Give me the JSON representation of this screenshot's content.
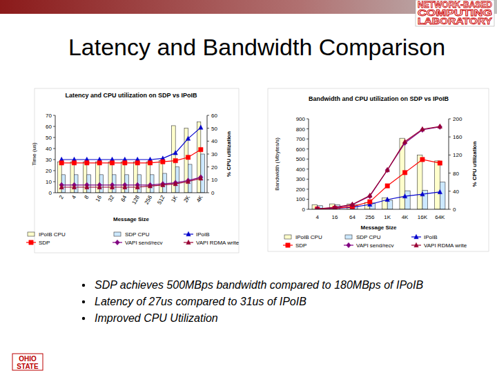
{
  "slide": {
    "title": "Latency and Bandwidth Comparison",
    "bullets": [
      "SDP achieves 500MBps bandwidth compared to 180MBps of IPoIB",
      "Latency of 27us compared to 31us of IPoIB",
      "Improved CPU Utilization"
    ],
    "logo": [
      "NETWORK-BASED",
      "COMPUTING",
      "LABORATORY"
    ],
    "footer_logo": [
      "OHIO",
      "STATE"
    ]
  },
  "chart_data": [
    {
      "type": "bar",
      "title": "Latency and CPU utilization on SDP vs IPoIB",
      "x_label": "Message Size",
      "y_label": "Time (us)",
      "y2_label": "% CPU utilization",
      "categories": [
        "2",
        "4",
        "8",
        "16",
        "32",
        "64",
        "128",
        "256",
        "512",
        "1K",
        "2K",
        "4K"
      ],
      "ylim": [
        0,
        70
      ],
      "yticks": [
        0,
        10,
        20,
        30,
        40,
        50,
        60,
        70
      ],
      "y2lim": [
        0,
        60
      ],
      "y2ticks": [
        0,
        10,
        20,
        30,
        40,
        50,
        60
      ],
      "legend": "bottom",
      "grid": false,
      "series": [
        {
          "name": "IPoIB CPU",
          "type": "bar",
          "axis": "y2",
          "color": "#ffffcc",
          "values": [
            24,
            24,
            24,
            24,
            24,
            24,
            24,
            24,
            25,
            52,
            50,
            55
          ]
        },
        {
          "name": "SDP CPU",
          "type": "bar",
          "axis": "y2",
          "color": "#cce8ff",
          "values": [
            14,
            14,
            14,
            14,
            14,
            14,
            14,
            14,
            15,
            20,
            22,
            30
          ]
        },
        {
          "name": "IPoIB",
          "type": "line",
          "color": "#0000cc",
          "marker": "triangle",
          "values": [
            30,
            30,
            30,
            30,
            30,
            30,
            30,
            30,
            31,
            36,
            49,
            59
          ]
        },
        {
          "name": "SDP",
          "type": "line",
          "color": "#ff0000",
          "marker": "square",
          "values": [
            27,
            27,
            27,
            27,
            27,
            27,
            27,
            27,
            28,
            29,
            32,
            39
          ]
        },
        {
          "name": "VAPI send/recv",
          "type": "line",
          "color": "#800080",
          "marker": "diamond",
          "values": [
            7,
            7,
            7,
            7,
            7,
            7,
            7,
            7,
            8,
            9,
            11,
            14
          ]
        },
        {
          "name": "VAPI RDMA write",
          "type": "line",
          "color": "#990033",
          "marker": "triangle",
          "values": [
            5,
            5,
            5,
            5,
            5,
            5,
            5,
            6,
            7,
            8,
            10,
            13
          ]
        }
      ]
    },
    {
      "type": "bar",
      "title": "Bandwidth and CPU utilization on SDP vs IPoIB",
      "x_label": "Message Size",
      "y_label": "Bandwidth (Mbytes/s)",
      "y2_label": "% CPU utilization",
      "categories": [
        "4",
        "16",
        "64",
        "256",
        "1K",
        "4K",
        "16K",
        "64K"
      ],
      "ylim": [
        0,
        900
      ],
      "yticks": [
        0,
        100,
        200,
        300,
        400,
        500,
        600,
        700,
        800,
        900
      ],
      "y2lim": [
        0,
        200
      ],
      "y2ticks": [
        0,
        40,
        80,
        120,
        160,
        200
      ],
      "legend": "bottom",
      "grid": false,
      "series": [
        {
          "name": "IPoIB CPU",
          "type": "bar",
          "axis": "y2",
          "color": "#ffffcc",
          "values": [
            10,
            12,
            12,
            15,
            25,
            157,
            120,
            107
          ]
        },
        {
          "name": "SDP CPU",
          "type": "bar",
          "axis": "y2",
          "color": "#cce8ff",
          "values": [
            8,
            10,
            10,
            14,
            20,
            41,
            42,
            60
          ]
        },
        {
          "name": "IPoIB",
          "type": "line",
          "color": "#0000cc",
          "marker": "triangle",
          "values": [
            3,
            10,
            20,
            48,
            96,
            130,
            150,
            172
          ]
        },
        {
          "name": "SDP",
          "type": "line",
          "color": "#ff0000",
          "marker": "square",
          "values": [
            3,
            10,
            27,
            75,
            233,
            365,
            495,
            460
          ]
        },
        {
          "name": "VAPI send/recv",
          "type": "line",
          "color": "#800080",
          "marker": "diamond",
          "values": [
            5,
            15,
            45,
            130,
            390,
            660,
            790,
            820
          ]
        },
        {
          "name": "VAPI RDMA write",
          "type": "line",
          "color": "#990033",
          "marker": "triangle",
          "values": [
            5,
            20,
            48,
            137,
            391,
            673,
            797,
            824
          ]
        }
      ]
    }
  ]
}
